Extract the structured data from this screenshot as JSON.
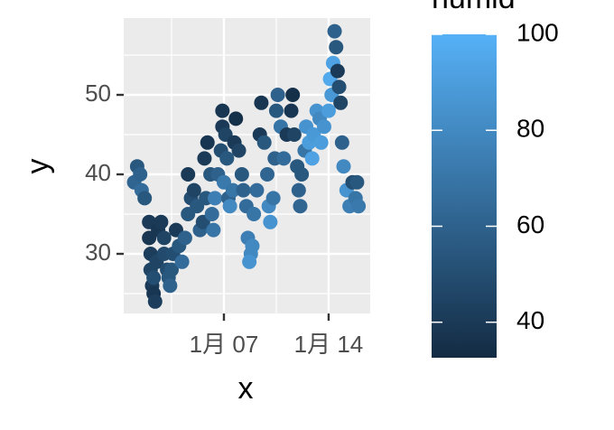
{
  "chart_data": {
    "type": "scatter",
    "x_label": "x",
    "y_label": "y",
    "xlim": [
      0.3,
      16.78
    ],
    "ylim": [
      22.5,
      59.66
    ],
    "xticks": [
      {
        "value": 7,
        "label": "1月 07"
      },
      {
        "value": 14,
        "label": "1月 14"
      }
    ],
    "yticks": [
      30,
      40,
      50
    ],
    "x_minor_ticks": [
      3.5,
      10.5
    ],
    "y_minor_ticks": [
      25,
      35,
      45,
      55
    ],
    "grid": true,
    "color_scale": {
      "title": "humid",
      "lim": [
        32.6,
        100
      ],
      "ticks": [
        40,
        60,
        80,
        100
      ],
      "low": "#132B43",
      "high": "#56B1F7"
    },
    "x": [
      1.0,
      1.2,
      1.4,
      1.5,
      1.7,
      2.0,
      2.0,
      2.1,
      2.1,
      2.2,
      2.3,
      2.4,
      2.3,
      2.5,
      2.6,
      2.8,
      3.0,
      3.0,
      3.2,
      3.3,
      3.4,
      3.5,
      3.6,
      3.8,
      4.0,
      4.2,
      4.4,
      4.6,
      4.8,
      4.6,
      5.0,
      5.2,
      5.4,
      5.6,
      5.8,
      5.7,
      5.9,
      6.1,
      6.2,
      6.3,
      6.4,
      6.6,
      6.8,
      6.9,
      6.9,
      7.1,
      7.2,
      7.0,
      7.3,
      7.4,
      7.6,
      7.7,
      7.8,
      8.0,
      8.2,
      8.3,
      8.5,
      8.6,
      8.8,
      8.7,
      8.9,
      9.0,
      9.2,
      9.4,
      9.5,
      9.7,
      9.9,
      10.0,
      10.1,
      10.3,
      10.4,
      10.5,
      10.6,
      10.8,
      11.0,
      11.2,
      11.5,
      11.6,
      11.7,
      11.9,
      12.0,
      12.1,
      12.2,
      12.4,
      12.5,
      12.7,
      12.9,
      13.0,
      13.2,
      13.4,
      13.5,
      13.7,
      14.0,
      14.2,
      14.3,
      14.1,
      14.4,
      14.5,
      14.6,
      14.7,
      14.8,
      14.9,
      15.0,
      15.2,
      15.4,
      15.6,
      15.8,
      16.0,
      15.9
    ],
    "y": [
      39,
      41,
      40,
      38,
      37,
      34,
      32,
      30,
      28,
      26,
      25,
      24,
      27,
      29,
      33,
      34,
      32,
      30,
      28,
      27,
      26,
      28,
      30,
      33,
      31,
      29,
      32,
      35,
      37,
      40,
      38,
      36,
      33,
      34,
      37,
      42,
      44,
      40,
      35,
      33,
      37,
      40,
      43,
      46,
      48,
      45,
      42,
      39,
      37,
      36,
      38,
      44,
      47,
      43,
      40,
      38,
      36,
      32,
      30,
      29,
      31,
      35,
      38,
      45,
      49,
      44,
      40,
      36,
      34,
      37,
      42,
      48,
      50,
      46,
      42,
      45,
      48,
      50,
      45,
      41,
      38,
      36,
      40,
      43,
      46,
      44,
      42,
      45,
      48,
      47,
      44,
      46,
      48,
      50,
      54,
      52,
      58,
      56,
      53,
      51,
      49,
      44,
      41,
      38,
      36,
      39,
      37,
      36,
      39
    ],
    "humid": [
      62,
      55,
      60,
      65,
      55,
      40,
      38,
      42,
      45,
      40,
      38,
      42,
      50,
      45,
      38,
      40,
      45,
      48,
      50,
      55,
      60,
      55,
      50,
      40,
      55,
      65,
      60,
      55,
      50,
      40,
      45,
      55,
      60,
      50,
      55,
      40,
      38,
      55,
      65,
      70,
      75,
      60,
      50,
      40,
      38,
      45,
      55,
      72,
      60,
      80,
      70,
      40,
      35,
      45,
      55,
      60,
      65,
      75,
      80,
      85,
      80,
      70,
      65,
      40,
      38,
      55,
      62,
      80,
      85,
      70,
      60,
      55,
      60,
      70,
      65,
      40,
      38,
      35,
      45,
      55,
      60,
      62,
      55,
      70,
      85,
      90,
      92,
      88,
      85,
      80,
      90,
      85,
      90,
      88,
      92,
      96,
      60,
      55,
      40,
      50,
      45,
      60,
      80,
      85,
      75,
      50,
      70,
      72,
      55
    ]
  }
}
